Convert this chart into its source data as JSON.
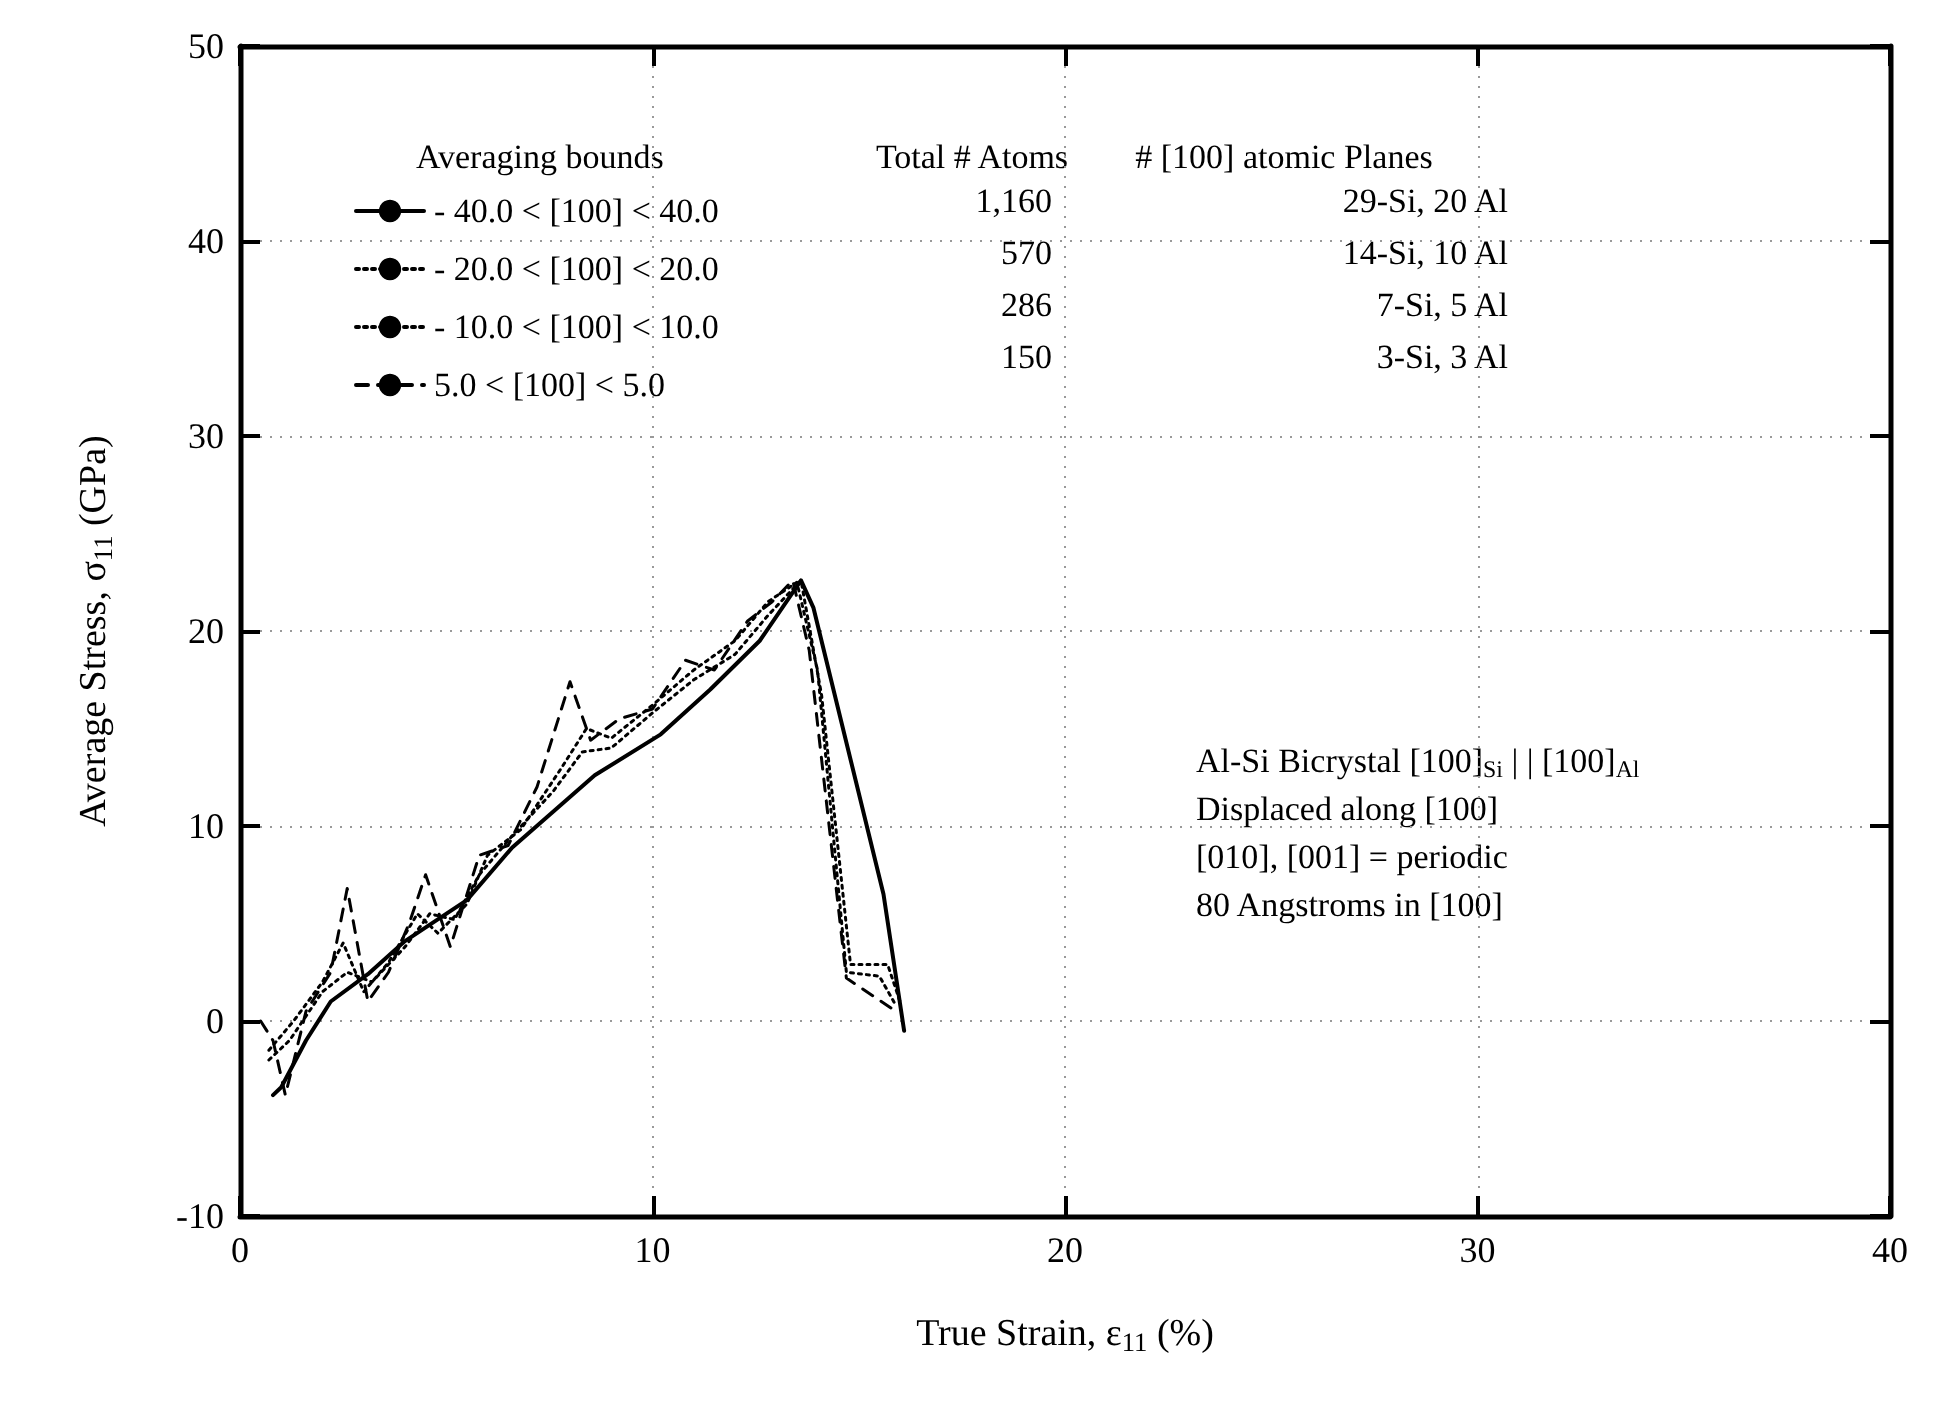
{
  "chart_data": {
    "type": "line",
    "xlabel": "True Strain, ε$_{11}$ (%)",
    "ylabel": "Average Stress, σ$_{11}$ (GPa)",
    "legend_title": "Averaging bounds",
    "legend": "top left",
    "marker": "none",
    "grid": true,
    "xlim": [
      0,
      40
    ],
    "xticks": [
      0,
      10,
      20,
      30,
      40
    ],
    "ylim": [
      -10,
      50
    ],
    "yticks": [
      -10,
      0,
      10,
      20,
      30,
      40,
      50
    ],
    "series": [
      {
        "name": "- 40.0 < [100] < 40.0",
        "color": "#000000",
        "line_style": "solid",
        "x": [
          0.8,
          1.0,
          1.6,
          2.2,
          3.1,
          4.0,
          5.5,
          6.6,
          8.6,
          10.2,
          11.4,
          12.6,
          13.6,
          13.9,
          15.6,
          16.1
        ],
        "values": [
          -3.8,
          -3.4,
          -1,
          1,
          2.4,
          4.1,
          6.2,
          8.9,
          12.6,
          14.7,
          17.0,
          19.5,
          22.6,
          21.2,
          6.5,
          -0.5
        ]
      },
      {
        "name": "- 20.0 < [100] < 20.0",
        "color": "#000000",
        "line_style": "dotted",
        "x": [
          0.7,
          1.2,
          2,
          2.6,
          3.2,
          4,
          4.6,
          5.2,
          5.8,
          6.6,
          7.6,
          8.3,
          9,
          10,
          11,
          12,
          12.8,
          13.6,
          14.1,
          14.8,
          15.7,
          16.0
        ],
        "values": [
          -2,
          -1,
          1.5,
          2.5,
          2,
          3.8,
          5.5,
          5.2,
          7.5,
          9.5,
          11.8,
          13.8,
          14,
          15.8,
          17.5,
          18.8,
          20.8,
          22.6,
          16.7,
          2.9,
          2.9,
          1.0
        ]
      },
      {
        "name": "- 10.0 < [100] < 10.0",
        "color": "#000000",
        "line_style": "dotted",
        "x": [
          0.7,
          1.3,
          2,
          2.5,
          3,
          3.6,
          4.3,
          4.8,
          5.5,
          6,
          6.8,
          7.8,
          8.4,
          9,
          10,
          11,
          12,
          12.8,
          13.5,
          14,
          14.7,
          15.5,
          15.9
        ],
        "values": [
          -1.5,
          0,
          2,
          4,
          1.5,
          3,
          5.5,
          4.5,
          6,
          8.5,
          9.8,
          13,
          15,
          14.5,
          16.2,
          18,
          19.5,
          21.5,
          22.5,
          18,
          2.5,
          2.3,
          0.8
        ]
      },
      {
        "name": "5.0 < [100] < 5.0",
        "color": "#000000",
        "line_style": "dashed",
        "x": [
          0.5,
          0.8,
          1.1,
          1.6,
          2.2,
          2.6,
          3.1,
          3.6,
          4.1,
          4.5,
          5.1,
          5.8,
          6.5,
          7.2,
          8.0,
          8.5,
          9.2,
          10,
          10.8,
          11.5,
          12.3,
          12.9,
          13.4,
          13.8,
          14.7,
          15.9
        ],
        "values": [
          0,
          -1,
          -3.8,
          0.5,
          2.5,
          6.8,
          1.0,
          2.5,
          5,
          7.5,
          3.8,
          8.5,
          9,
          12,
          17.4,
          14.4,
          15.5,
          16,
          18.5,
          18,
          20.5,
          21.5,
          22.6,
          19,
          2.2,
          0.5
        ]
      }
    ],
    "annotations": [
      "Total # Atoms",
      "1,160",
      "570",
      "286",
      "150",
      "# [100] atomic Planes",
      "29-Si, 20 Al",
      "14-Si, 10 Al",
      "7-Si, 5 Al",
      "3-Si, 3 Al",
      "Al-Si Bicrystal [100]$_{Si}$ | | [100]$_{Al}$",
      "Displaced along [100]",
      "[010], [001] = periodic",
      "80 Angstroms in [100]"
    ]
  }
}
